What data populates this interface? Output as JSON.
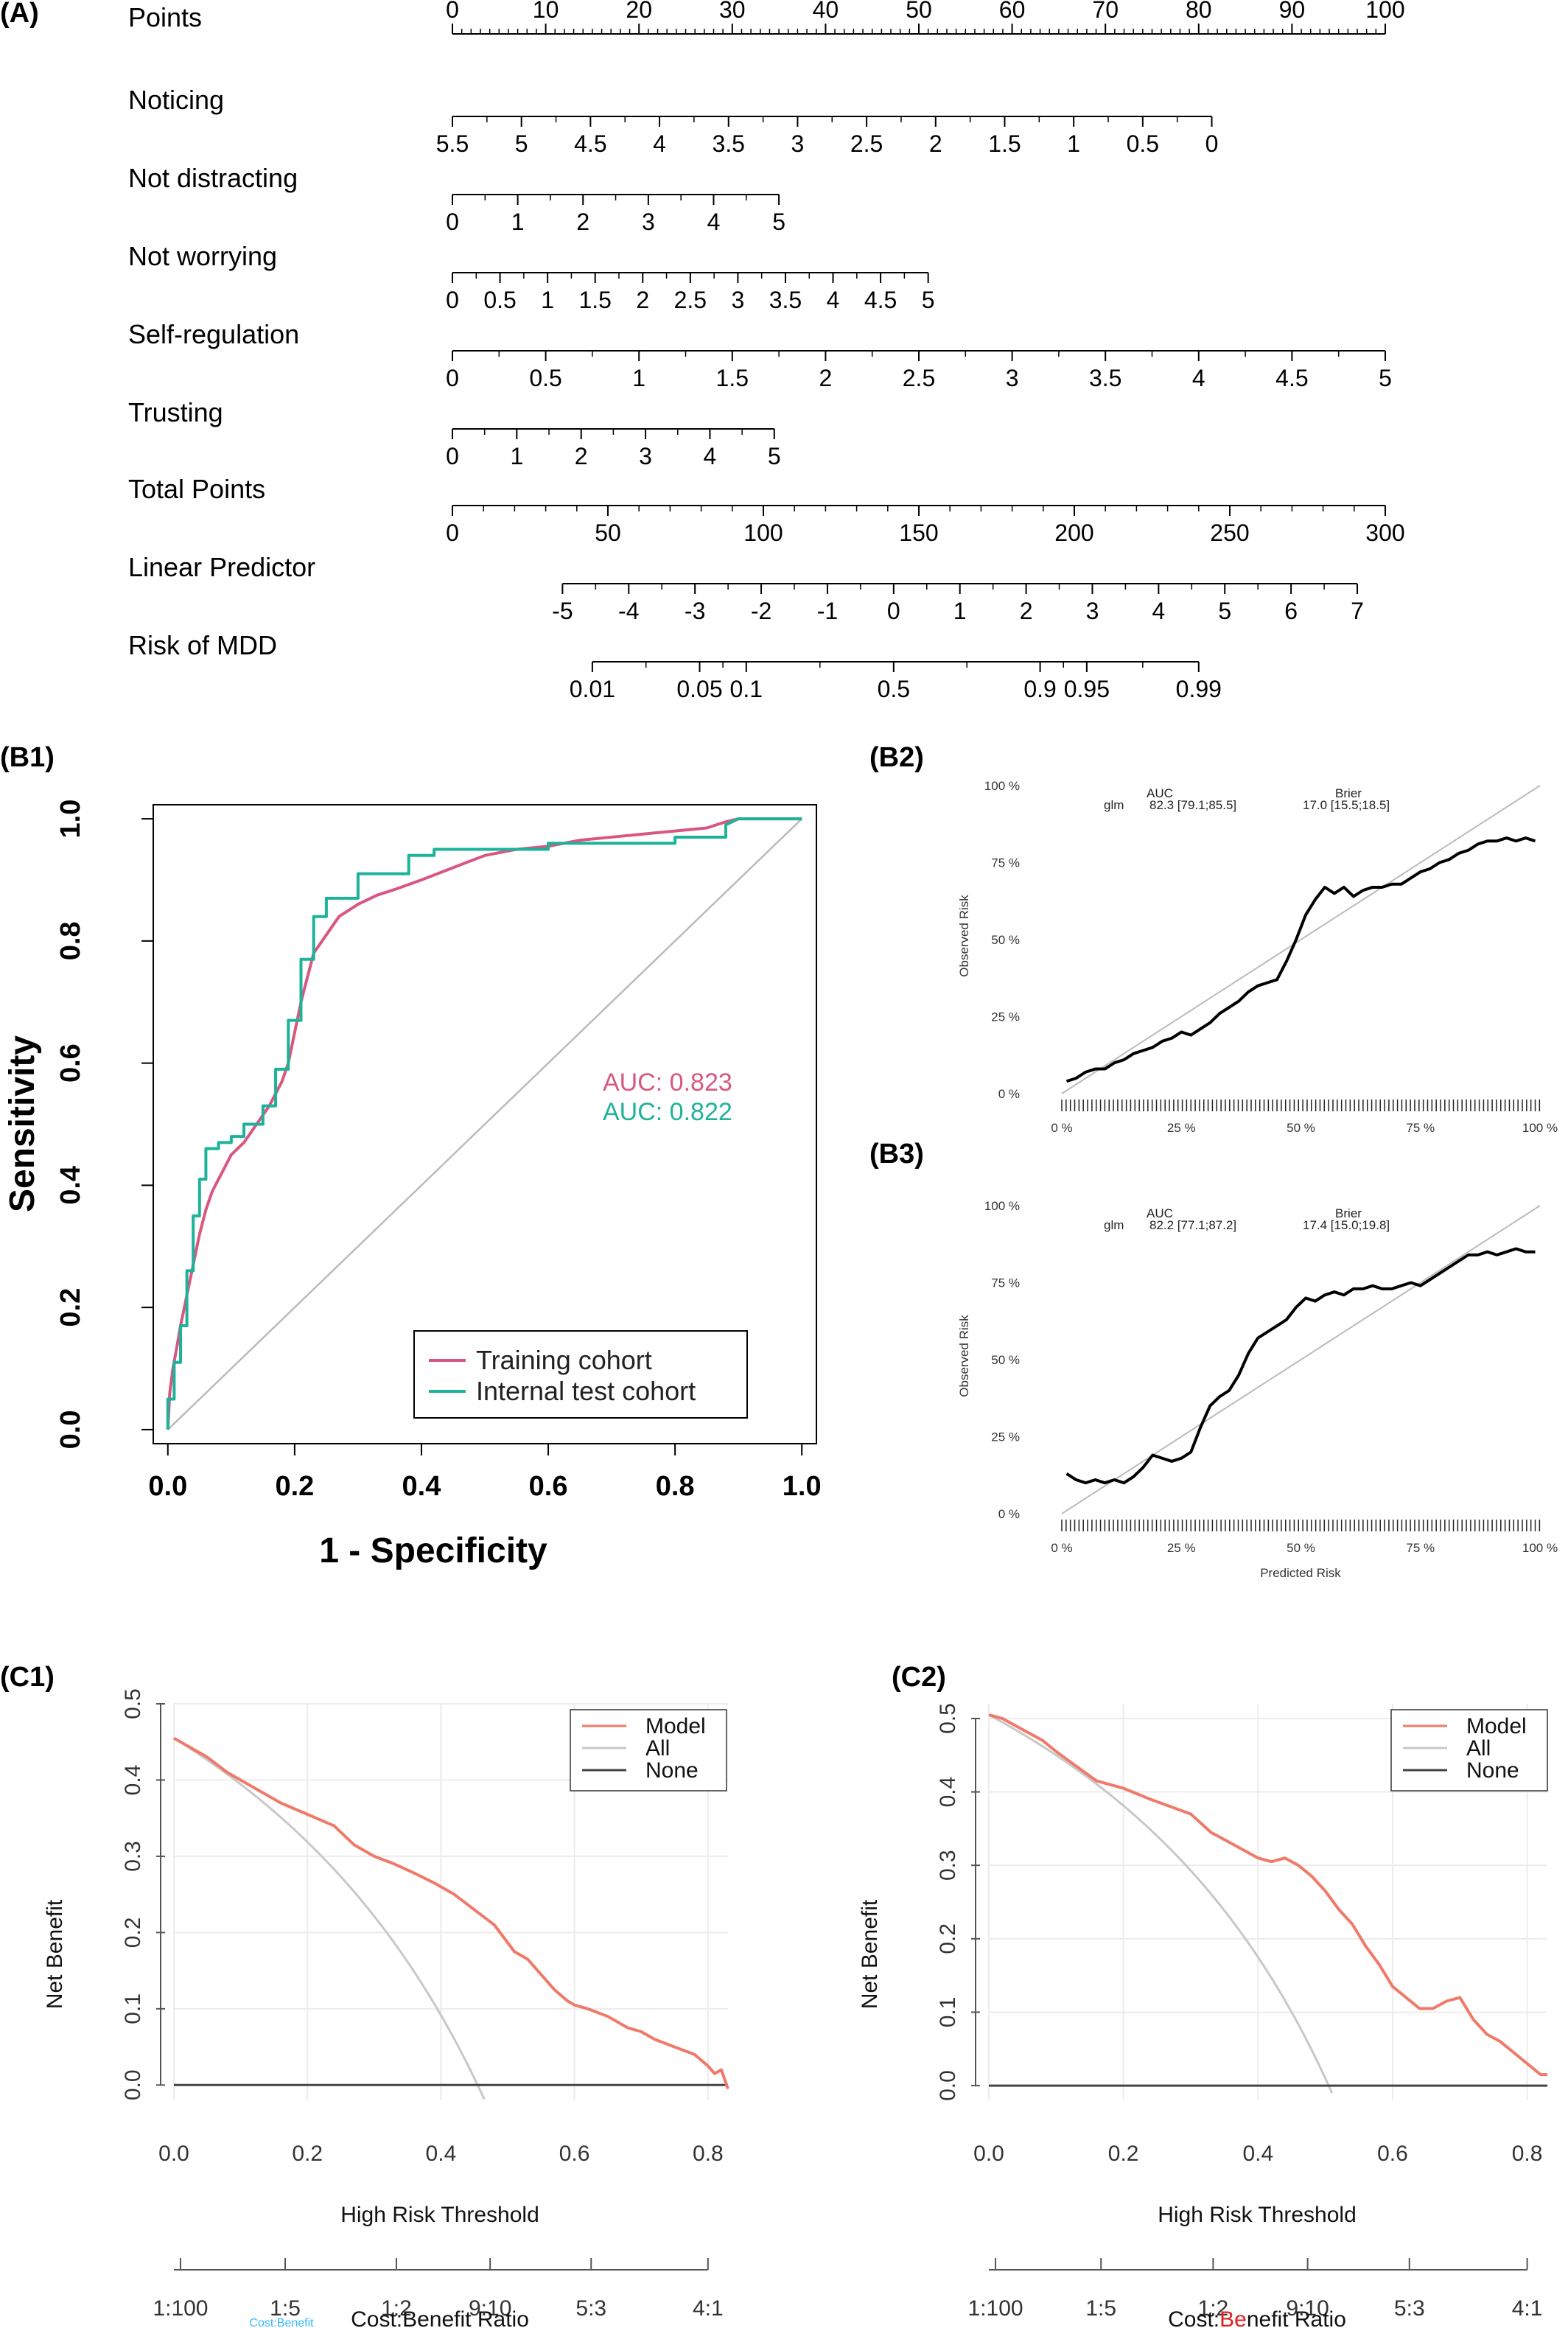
{
  "panel_labels": {
    "A": "(A)",
    "B1": "(B1)",
    "B2": "(B2)",
    "B3": "(B3)",
    "C1": "(C1)",
    "C2": "(C2)"
  },
  "colors": {
    "training": "#d9577f",
    "test": "#1db39a",
    "model": "#f07a6a",
    "all": "#c8c8c8",
    "none": "#444444",
    "diagonal": "#bbbbbb",
    "grid": "#ececec"
  },
  "chart_data": [
    {
      "id": "A",
      "type": "nomogram",
      "rows": [
        {
          "label": "Points",
          "ticks": [
            "0",
            "10",
            "20",
            "30",
            "40",
            "50",
            "60",
            "70",
            "80",
            "90",
            "100"
          ],
          "positions": [
            0,
            10,
            20,
            30,
            40,
            50,
            60,
            70,
            80,
            90,
            100
          ],
          "minor_step": 1,
          "labels_above": true
        },
        {
          "label": "Noticing",
          "ticks": [
            "5.5",
            "5",
            "4.5",
            "4",
            "3.5",
            "3",
            "2.5",
            "2",
            "1.5",
            "1",
            "0.5",
            "0"
          ],
          "positions": [
            0,
            7.4,
            14.8,
            22.2,
            29.6,
            37,
            44.4,
            51.8,
            59.2,
            66.6,
            74,
            81.4
          ],
          "labels_above": false
        },
        {
          "label": "Not distracting",
          "ticks": [
            "0",
            "1",
            "2",
            "3",
            "4",
            "5"
          ],
          "positions": [
            0,
            7,
            14,
            21,
            28,
            35
          ],
          "labels_above": false
        },
        {
          "label": "Not worrying",
          "ticks": [
            "0",
            "0.5",
            "1",
            "1.5",
            "2",
            "2.5",
            "3",
            "3.5",
            "4",
            "4.5",
            "5"
          ],
          "positions": [
            0,
            5.1,
            10.2,
            15.3,
            20.4,
            25.5,
            30.6,
            35.7,
            40.8,
            45.9,
            51
          ],
          "labels_above": false
        },
        {
          "label": "Self-regulation",
          "ticks": [
            "0",
            "0.5",
            "1",
            "1.5",
            "2",
            "2.5",
            "3",
            "3.5",
            "4",
            "4.5",
            "5"
          ],
          "positions": [
            0,
            10,
            20,
            30,
            40,
            50,
            60,
            70,
            80,
            90,
            100
          ],
          "labels_above": false
        },
        {
          "label": "Trusting",
          "ticks": [
            "0",
            "1",
            "2",
            "3",
            "4",
            "5"
          ],
          "positions": [
            0,
            6.9,
            13.8,
            20.7,
            27.6,
            34.5
          ],
          "labels_above": false
        },
        {
          "label": "Total Points",
          "ticks": [
            "0",
            "50",
            "100",
            "150",
            "200",
            "250",
            "300"
          ],
          "positions": [
            0,
            16.667,
            33.333,
            50,
            66.667,
            83.333,
            100
          ],
          "labels_above": false
        },
        {
          "label": "Linear Predictor",
          "ticks": [
            "-5",
            "-4",
            "-3",
            "-2",
            "-1",
            "0",
            "1",
            "2",
            "3",
            "4",
            "5",
            "6",
            "7"
          ],
          "positions": [
            11.8,
            18.9,
            26.0,
            33.1,
            40.2,
            47.3,
            54.4,
            61.5,
            68.6,
            75.7,
            82.8,
            89.9,
            97.0
          ],
          "labels_above": false
        },
        {
          "label": "Risk of MDD",
          "ticks": [
            "0.01",
            "0.05",
            "0.1",
            "0.5",
            "0.9",
            "0.95",
            "0.99"
          ],
          "positions": [
            15.0,
            26.5,
            31.5,
            47.3,
            63.0,
            68.0,
            80.0
          ],
          "labels_above": false
        }
      ]
    },
    {
      "id": "B1",
      "type": "line",
      "xlabel": "1 - Specificity",
      "ylabel": "Sensitivity",
      "xlim": [
        0,
        1
      ],
      "ylim": [
        0,
        1
      ],
      "xticks": [
        "0.0",
        "0.2",
        "0.4",
        "0.6",
        "0.8",
        "1.0"
      ],
      "yticks": [
        "0.0",
        "0.2",
        "0.4",
        "0.6",
        "0.8",
        "1.0"
      ],
      "auc_labels": [
        "AUC: 0.823",
        "AUC: 0.822"
      ],
      "series": [
        {
          "name": "Training cohort",
          "x": [
            0,
            0.003,
            0.008,
            0.015,
            0.02,
            0.03,
            0.04,
            0.05,
            0.06,
            0.07,
            0.08,
            0.09,
            0.1,
            0.12,
            0.14,
            0.16,
            0.18,
            0.19,
            0.2,
            0.21,
            0.22,
            0.23,
            0.25,
            0.27,
            0.3,
            0.33,
            0.36,
            0.4,
            0.45,
            0.5,
            0.55,
            0.6,
            0.65,
            0.7,
            0.75,
            0.8,
            0.85,
            0.88,
            0.9,
            1.0
          ],
          "y": [
            0,
            0.06,
            0.1,
            0.14,
            0.17,
            0.22,
            0.27,
            0.32,
            0.36,
            0.39,
            0.41,
            0.43,
            0.45,
            0.47,
            0.5,
            0.53,
            0.57,
            0.6,
            0.65,
            0.7,
            0.74,
            0.78,
            0.81,
            0.84,
            0.86,
            0.875,
            0.885,
            0.9,
            0.92,
            0.94,
            0.95,
            0.955,
            0.965,
            0.97,
            0.975,
            0.98,
            0.985,
            0.995,
            1.0,
            1.0
          ]
        },
        {
          "name": "Internal test cohort",
          "x": [
            0,
            0,
            0.01,
            0.01,
            0.02,
            0.02,
            0.03,
            0.03,
            0.04,
            0.04,
            0.05,
            0.05,
            0.06,
            0.06,
            0.08,
            0.08,
            0.1,
            0.1,
            0.12,
            0.12,
            0.15,
            0.15,
            0.17,
            0.17,
            0.19,
            0.19,
            0.21,
            0.21,
            0.23,
            0.23,
            0.25,
            0.25,
            0.3,
            0.3,
            0.38,
            0.38,
            0.42,
            0.42,
            0.6,
            0.6,
            0.8,
            0.8,
            0.88,
            0.88,
            0.9,
            1.0
          ],
          "y": [
            0,
            0.05,
            0.05,
            0.11,
            0.11,
            0.17,
            0.17,
            0.26,
            0.26,
            0.35,
            0.35,
            0.41,
            0.41,
            0.46,
            0.46,
            0.47,
            0.47,
            0.48,
            0.48,
            0.5,
            0.5,
            0.53,
            0.53,
            0.59,
            0.59,
            0.67,
            0.67,
            0.77,
            0.77,
            0.84,
            0.84,
            0.87,
            0.87,
            0.91,
            0.91,
            0.94,
            0.94,
            0.95,
            0.95,
            0.96,
            0.96,
            0.97,
            0.97,
            0.99,
            1.0,
            1.0
          ]
        }
      ]
    },
    {
      "id": "B2",
      "type": "line",
      "ylabel": "Observed Risk",
      "xticks": [
        "0 %",
        "25 %",
        "50 %",
        "75 %",
        "100 %"
      ],
      "yticks": [
        "0 %",
        "25 %",
        "50 %",
        "75 %",
        "100 %"
      ],
      "stats_header": [
        "AUC",
        "Brier"
      ],
      "stats_row": [
        "glm",
        "82.3 [79.1;85.5]",
        "17.0 [15.5;18.5]"
      ],
      "series": [
        {
          "x": [
            1,
            3,
            5,
            7,
            9,
            11,
            13,
            15,
            17,
            19,
            21,
            23,
            25,
            27,
            29,
            31,
            33,
            35,
            37,
            39,
            41,
            43,
            45,
            47,
            49,
            51,
            53,
            55,
            57,
            59,
            61,
            63,
            65,
            67,
            69,
            71,
            73,
            75,
            77,
            79,
            81,
            83,
            85,
            87,
            89,
            91,
            93,
            95,
            97,
            99
          ],
          "y": [
            4,
            5,
            7,
            8,
            8,
            10,
            11,
            13,
            14,
            15,
            17,
            18,
            20,
            19,
            21,
            23,
            26,
            28,
            30,
            33,
            35,
            36,
            37,
            43,
            50,
            58,
            63,
            67,
            65,
            67,
            64,
            66,
            67,
            67,
            68,
            68,
            70,
            72,
            73,
            75,
            76,
            78,
            79,
            81,
            82,
            82,
            83,
            82,
            83,
            82
          ]
        }
      ]
    },
    {
      "id": "B3",
      "type": "line",
      "xlabel": "Predicted Risk",
      "ylabel": "Observed Risk",
      "xticks": [
        "0 %",
        "25 %",
        "50 %",
        "75 %",
        "100 %"
      ],
      "yticks": [
        "0 %",
        "25 %",
        "50 %",
        "75 %",
        "100 %"
      ],
      "stats_header": [
        "AUC",
        "Brier"
      ],
      "stats_row": [
        "glm",
        "82.2 [77.1;87.2]",
        "17.4 [15.0;19.8]"
      ],
      "series": [
        {
          "x": [
            1,
            3,
            5,
            7,
            9,
            11,
            13,
            15,
            17,
            19,
            21,
            23,
            25,
            27,
            29,
            31,
            33,
            35,
            37,
            39,
            41,
            43,
            45,
            47,
            49,
            51,
            53,
            55,
            57,
            59,
            61,
            63,
            65,
            67,
            69,
            71,
            73,
            75,
            77,
            79,
            81,
            83,
            85,
            87,
            89,
            91,
            93,
            95,
            97,
            99
          ],
          "y": [
            13,
            11,
            10,
            11,
            10,
            11,
            10,
            12,
            15,
            19,
            18,
            17,
            18,
            20,
            28,
            35,
            38,
            40,
            45,
            52,
            57,
            59,
            61,
            63,
            67,
            70,
            69,
            71,
            72,
            71,
            73,
            73,
            74,
            73,
            73,
            74,
            75,
            74,
            76,
            78,
            80,
            82,
            84,
            84,
            85,
            84,
            85,
            86,
            85,
            85
          ]
        }
      ]
    },
    {
      "id": "C1",
      "type": "line",
      "xlabel": "High Risk Threshold",
      "ylabel": "Net Benefit",
      "xlim": [
        0,
        0.83
      ],
      "ylim": [
        -0.005,
        0.5
      ],
      "xticks": [
        "0.0",
        "0.2",
        "0.4",
        "0.6",
        "0.8"
      ],
      "yticks": [
        "0.0",
        "0.1",
        "0.2",
        "0.3",
        "0.4",
        "0.5"
      ],
      "cost_benefit_ticks": [
        "1:100",
        "1:5",
        "1:2",
        "9:10",
        "5:3",
        "4:1"
      ],
      "cost_benefit_label": "Cost:Benefit Ratio",
      "faint_label": "Cost:Benefit",
      "legend": [
        "Model",
        "All",
        "None"
      ],
      "prevalence": 0.455,
      "series": [
        {
          "name": "Model",
          "x": [
            0,
            0.02,
            0.05,
            0.08,
            0.1,
            0.13,
            0.16,
            0.2,
            0.24,
            0.27,
            0.3,
            0.33,
            0.36,
            0.39,
            0.42,
            0.45,
            0.48,
            0.51,
            0.53,
            0.55,
            0.57,
            0.59,
            0.6,
            0.62,
            0.65,
            0.68,
            0.7,
            0.72,
            0.75,
            0.78,
            0.8,
            0.81,
            0.82,
            0.83
          ],
          "y": [
            0.455,
            0.445,
            0.43,
            0.41,
            0.4,
            0.385,
            0.37,
            0.355,
            0.34,
            0.315,
            0.3,
            0.29,
            0.278,
            0.265,
            0.25,
            0.23,
            0.21,
            0.175,
            0.165,
            0.145,
            0.125,
            0.11,
            0.105,
            0.1,
            0.09,
            0.075,
            0.07,
            0.06,
            0.05,
            0.04,
            0.025,
            0.015,
            0.02,
            -0.005
          ]
        },
        {
          "name": "None",
          "x": [
            0,
            0.83
          ],
          "y": [
            0,
            0
          ]
        }
      ]
    },
    {
      "id": "C2",
      "type": "line",
      "xlabel": "High Risk Threshold",
      "ylabel": "Net Benefit",
      "xlim": [
        0,
        0.83
      ],
      "ylim": [
        -0.005,
        0.52
      ],
      "xticks": [
        "0.0",
        "0.2",
        "0.4",
        "0.6",
        "0.8"
      ],
      "yticks": [
        "0.0",
        "0.1",
        "0.2",
        "0.3",
        "0.4",
        "0.5"
      ],
      "cost_benefit_ticks": [
        "1:100",
        "1:5",
        "1:2",
        "9:10",
        "5:3",
        "4:1"
      ],
      "cost_benefit_label_parts": [
        "Cost:",
        "Be",
        "nefit Ratio"
      ],
      "legend": [
        "Model",
        "All",
        "None"
      ],
      "prevalence": 0.505,
      "series": [
        {
          "name": "Model",
          "x": [
            0,
            0.02,
            0.05,
            0.08,
            0.1,
            0.13,
            0.16,
            0.2,
            0.24,
            0.27,
            0.3,
            0.33,
            0.36,
            0.38,
            0.4,
            0.42,
            0.44,
            0.46,
            0.48,
            0.5,
            0.52,
            0.54,
            0.56,
            0.58,
            0.6,
            0.62,
            0.64,
            0.66,
            0.68,
            0.7,
            0.72,
            0.74,
            0.76,
            0.78,
            0.8,
            0.82,
            0.83
          ],
          "y": [
            0.505,
            0.5,
            0.485,
            0.47,
            0.455,
            0.435,
            0.415,
            0.405,
            0.39,
            0.38,
            0.37,
            0.345,
            0.33,
            0.32,
            0.31,
            0.305,
            0.31,
            0.3,
            0.285,
            0.265,
            0.24,
            0.22,
            0.19,
            0.165,
            0.135,
            0.12,
            0.105,
            0.105,
            0.115,
            0.12,
            0.09,
            0.07,
            0.06,
            0.045,
            0.03,
            0.015,
            0.015
          ]
        },
        {
          "name": "None",
          "x": [
            0,
            0.83
          ],
          "y": [
            0,
            0
          ]
        }
      ]
    }
  ]
}
